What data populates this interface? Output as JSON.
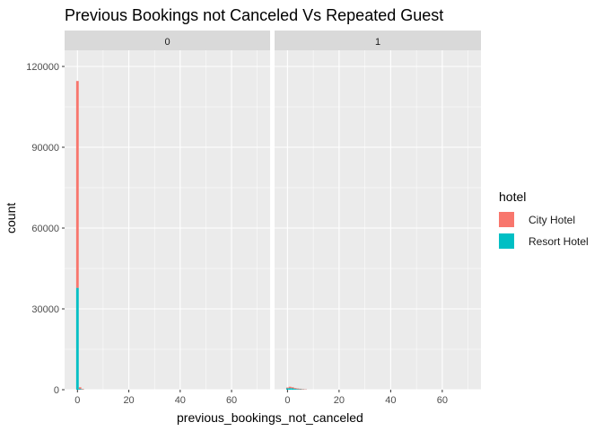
{
  "chart_data": {
    "type": "bar",
    "title": "Previous Bookings not Canceled Vs Repeated Guest",
    "xlabel": "previous_bookings_not_canceled",
    "ylabel": "count",
    "xlim": [
      -5,
      75
    ],
    "ylim": [
      0,
      126000
    ],
    "x_ticks": [
      0,
      20,
      40,
      60
    ],
    "y_ticks": [
      0,
      30000,
      60000,
      90000,
      120000
    ],
    "bin_width": 1,
    "stacked": true,
    "legend": {
      "title": "hotel",
      "position": "right"
    },
    "series": [
      {
        "name": "City Hotel",
        "color": "#F8766D"
      },
      {
        "name": "Resort Hotel",
        "color": "#00BFC4"
      }
    ],
    "facets": [
      {
        "label": "0",
        "bins": [
          {
            "x": 0,
            "values": [
              76800,
              37800
            ]
          },
          {
            "x": 1,
            "values": [
              600,
              300
            ]
          },
          {
            "x": 2,
            "values": [
              200,
              100
            ]
          }
        ]
      },
      {
        "label": "1",
        "bins": [
          {
            "x": 0,
            "values": [
              300,
              500
            ]
          },
          {
            "x": 1,
            "values": [
              500,
              600
            ]
          },
          {
            "x": 2,
            "values": [
              400,
              500
            ]
          },
          {
            "x": 3,
            "values": [
              300,
              300
            ]
          },
          {
            "x": 4,
            "values": [
              250,
              200
            ]
          },
          {
            "x": 5,
            "values": [
              200,
              150
            ]
          },
          {
            "x": 6,
            "values": [
              150,
              100
            ]
          },
          {
            "x": 7,
            "values": [
              100,
              50
            ]
          }
        ]
      }
    ]
  }
}
